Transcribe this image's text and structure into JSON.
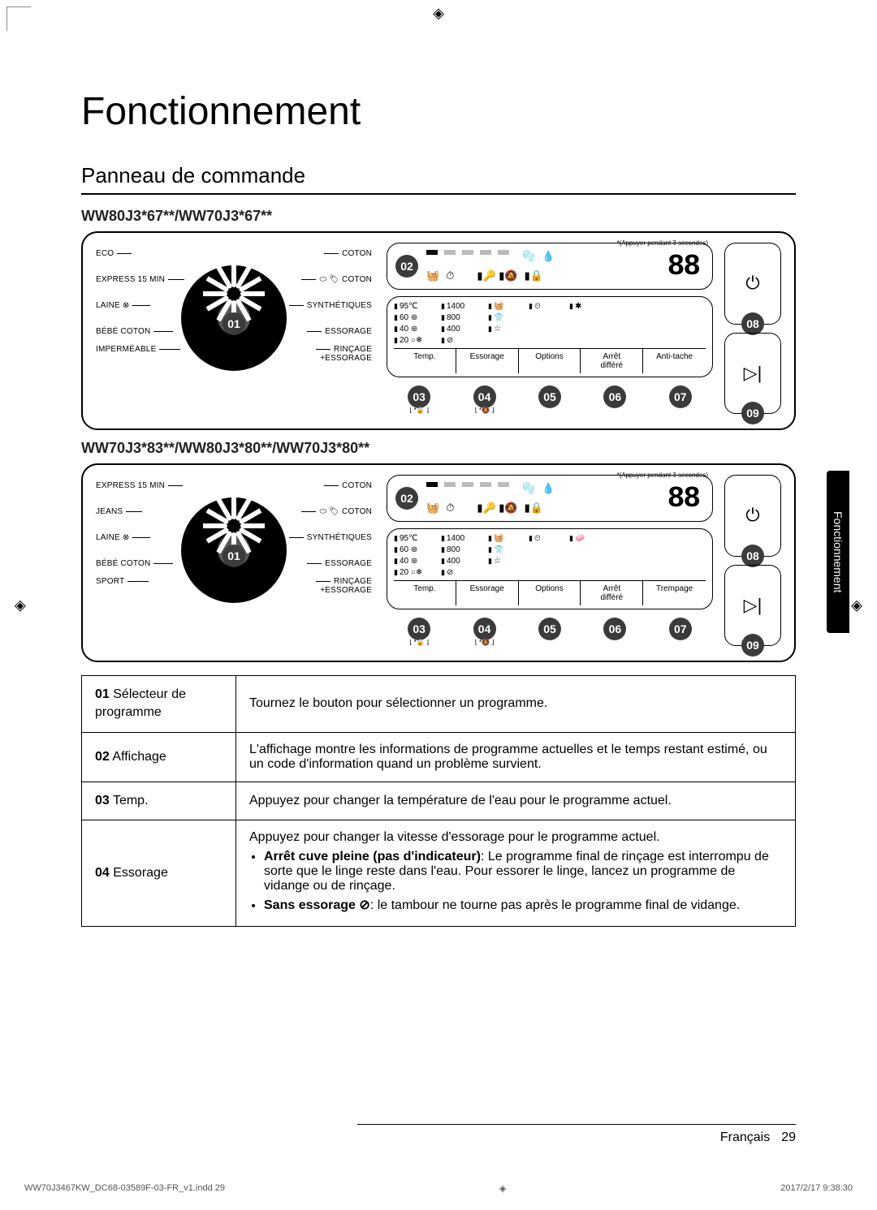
{
  "cropmarks": {
    "symbol": "◈"
  },
  "title": "Fonctionnement",
  "section": "Panneau de commande",
  "side_tab": "Fonctionnement",
  "panels": [
    {
      "model": "WW80J3*67**/WW70J3*67**",
      "hint": "*(Appuyer pendant 3 secondes)",
      "dial_num": "01",
      "left_progs": [
        "ECO",
        "EXPRESS 15 MIN",
        "LAINE ⊗",
        "BÉBÉ COTON",
        "IMPERMÉABLE"
      ],
      "right_progs": [
        "COTON",
        "⬭ 🏷 COTON",
        "SYNTHÉTIQUES",
        "ESSORAGE",
        "RINÇAGE\n+ESSORAGE"
      ],
      "display_num": "02",
      "seg": "88",
      "temps": [
        "95℃",
        "60 ⊛",
        "40 ⊛",
        "20 ○❄"
      ],
      "spins": [
        "1400",
        "800",
        "400",
        "⊘"
      ],
      "col3": [
        "🧺",
        "👕",
        "☆"
      ],
      "col4": [
        "⏲"
      ],
      "col5": [
        "✱"
      ],
      "buttons": [
        "Temp.",
        "Essorage",
        "Options",
        "Arrêt\ndifféré",
        "Anti-tache"
      ],
      "button_nums": [
        "03",
        "04",
        "05",
        "06",
        "07"
      ],
      "button_subs": [
        "⌊ *🔒 ⌋",
        "⌊ *🔕 ⌋",
        "",
        "",
        ""
      ],
      "power_num": "08",
      "play_num": "09"
    },
    {
      "model": "WW70J3*83**/WW80J3*80**/WW70J3*80**",
      "hint": "*(Appuyer pendant 3 secondes)",
      "dial_num": "01",
      "left_progs": [
        "EXPRESS 15 MIN",
        "JEANS",
        "LAINE ⊗",
        "BÉBÉ COTON",
        "SPORT"
      ],
      "right_progs": [
        "COTON",
        "⬭ 🏷 COTON",
        "SYNTHÉTIQUES",
        "ESSORAGE",
        "RINÇAGE\n+ESSORAGE"
      ],
      "display_num": "02",
      "seg": "88",
      "temps": [
        "95℃",
        "60 ⊛",
        "40 ⊛",
        "20 ○❄"
      ],
      "spins": [
        "1400",
        "800",
        "400",
        "⊘"
      ],
      "col3": [
        "🧺",
        "👕",
        "☆"
      ],
      "col4": [
        "⏲"
      ],
      "col5": [
        "🧼"
      ],
      "buttons": [
        "Temp.",
        "Essorage",
        "Options",
        "Arrêt\ndifféré",
        "Trempage"
      ],
      "button_nums": [
        "03",
        "04",
        "05",
        "06",
        "07"
      ],
      "button_subs": [
        "⌊ *🔒 ⌋",
        "⌊ *🔕 ⌋",
        "",
        "",
        ""
      ],
      "power_num": "08",
      "play_num": "09"
    }
  ],
  "table": [
    {
      "num": "01",
      "label": "Sélecteur de programme",
      "desc": "Tournez le bouton pour sélectionner un programme."
    },
    {
      "num": "02",
      "label": "Affichage",
      "desc": "L'affichage montre les informations de programme actuelles et le temps restant estimé, ou un code d'information quand un problème survient."
    },
    {
      "num": "03",
      "label": "Temp.",
      "desc": "Appuyez pour changer la température de l'eau pour le programme actuel."
    },
    {
      "num": "04",
      "label": "Essorage",
      "desc_html": true,
      "desc": "Appuyez pour changer la vitesse d'essorage pour le programme actuel.",
      "bullets": [
        {
          "b": "Arrêt cuve pleine (pas d'indicateur)",
          "t": ": Le programme final de rinçage est interrompu de sorte que le linge reste dans l'eau. Pour essorer le linge, lancez un programme de vidange ou de rinçage."
        },
        {
          "b": "Sans essorage ⊘",
          "t": ": le tambour ne tourne pas après le programme final de vidange."
        }
      ]
    }
  ],
  "footer": {
    "lang": "Français",
    "page": "29"
  },
  "print_footer": {
    "left": "WW70J3467KW_DC68-03589F-03-FR_v1.indd   29",
    "right": "2017/2/17   9:38:30"
  },
  "colors": {
    "callout_bg": "#3b3b3b",
    "callout_fg": "#ffffff",
    "text": "#000000",
    "bg": "#ffffff"
  }
}
